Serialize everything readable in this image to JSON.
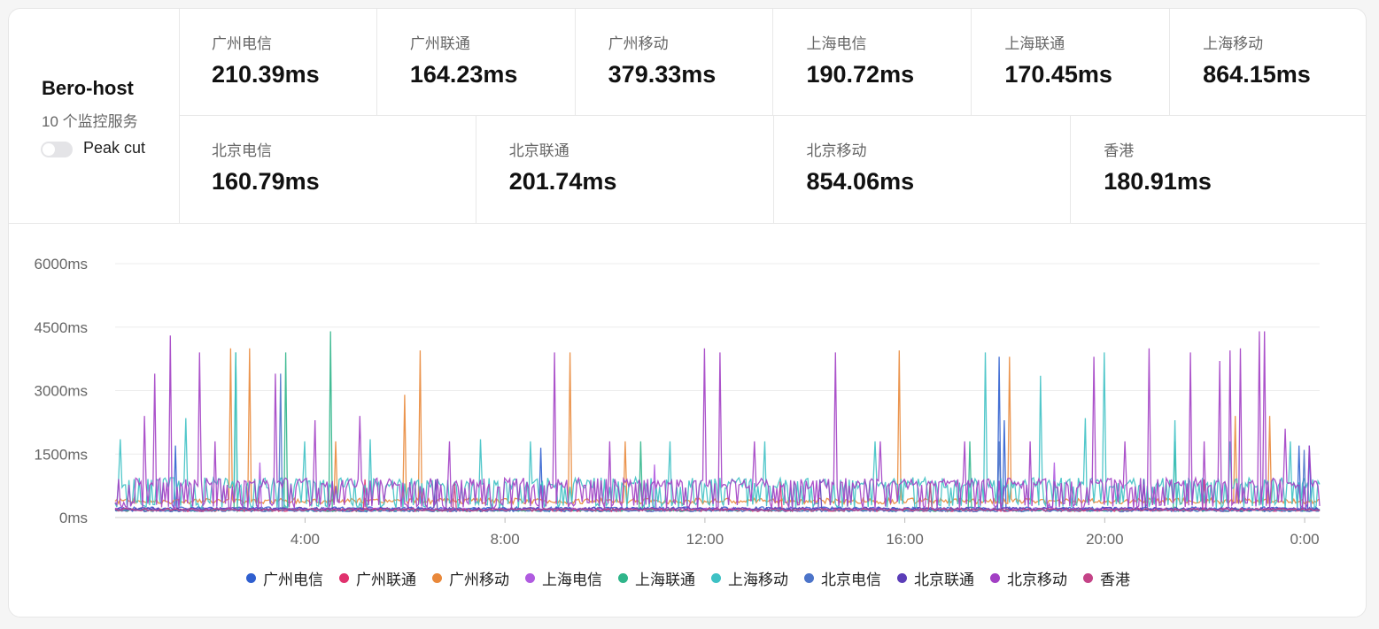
{
  "host": {
    "name": "Bero-host",
    "service_count": "10 个监控服务",
    "peak_cut_label": "Peak cut",
    "peak_cut_enabled": false
  },
  "stats": [
    {
      "label": "广州电信",
      "value": "210.39ms"
    },
    {
      "label": "广州联通",
      "value": "164.23ms"
    },
    {
      "label": "广州移动",
      "value": "379.33ms"
    },
    {
      "label": "上海电信",
      "value": "190.72ms"
    },
    {
      "label": "上海联通",
      "value": "170.45ms"
    },
    {
      "label": "上海移动",
      "value": "864.15ms"
    },
    {
      "label": "北京电信",
      "value": "160.79ms"
    },
    {
      "label": "北京联通",
      "value": "201.74ms"
    },
    {
      "label": "北京移动",
      "value": "854.06ms"
    },
    {
      "label": "香港",
      "value": "180.91ms"
    }
  ],
  "chart_data": {
    "type": "line",
    "ylim": [
      0,
      6000
    ],
    "y_ticks": [
      "0ms",
      "1500ms",
      "3000ms",
      "4500ms",
      "6000ms"
    ],
    "y_tick_values": [
      0,
      1500,
      3000,
      4500,
      6000
    ],
    "x_ticks": [
      "4:00",
      "8:00",
      "12:00",
      "16:00",
      "20:00",
      "0:00"
    ],
    "x_tick_hours": [
      4,
      8,
      12,
      16,
      20,
      24
    ],
    "xlim_hours": [
      0.2,
      24.3
    ],
    "legend_placement": "bottom",
    "series": [
      {
        "name": "广州电信",
        "color": "#2f5fcf",
        "baseline": 210,
        "spikes": [
          [
            1.4,
            1700
          ],
          [
            8.7,
            1650
          ],
          [
            17.9,
            3800
          ],
          [
            18.0,
            2300
          ],
          [
            23.9,
            1700
          ],
          [
            24.1,
            1700
          ]
        ]
      },
      {
        "name": "广州联通",
        "color": "#e0316d",
        "baseline": 165,
        "spikes": [
          [
            5.2,
            900
          ],
          [
            13.5,
            850
          ],
          [
            22.0,
            900
          ]
        ]
      },
      {
        "name": "广州移动",
        "color": "#e9883a",
        "baseline": 380,
        "spikes": [
          [
            2.5,
            4000
          ],
          [
            2.9,
            4000
          ],
          [
            4.6,
            1800
          ],
          [
            6.0,
            2900
          ],
          [
            6.3,
            3950
          ],
          [
            9.3,
            3900
          ],
          [
            10.4,
            1800
          ],
          [
            15.9,
            3950
          ],
          [
            18.1,
            3800
          ],
          [
            22.6,
            2400
          ],
          [
            23.3,
            2400
          ]
        ]
      },
      {
        "name": "上海电信",
        "color": "#b05be0",
        "baseline": 190,
        "spikes": [
          [
            3.1,
            1300
          ],
          [
            11.0,
            1250
          ],
          [
            19.0,
            1300
          ]
        ]
      },
      {
        "name": "上海联通",
        "color": "#2fb58a",
        "baseline": 170,
        "spikes": [
          [
            2.6,
            3900
          ],
          [
            3.6,
            3900
          ],
          [
            4.5,
            4400
          ],
          [
            10.7,
            1800
          ],
          [
            17.3,
            1800
          ],
          [
            21.4,
            1800
          ]
        ]
      },
      {
        "name": "上海移动",
        "color": "#3ec1c4",
        "baseline": 860,
        "spikes": [
          [
            0.3,
            1850
          ],
          [
            1.6,
            2350
          ],
          [
            2.6,
            3900
          ],
          [
            4.0,
            1800
          ],
          [
            5.3,
            1850
          ],
          [
            7.5,
            1850
          ],
          [
            8.5,
            1800
          ],
          [
            11.3,
            1800
          ],
          [
            13.2,
            1800
          ],
          [
            15.4,
            1800
          ],
          [
            17.6,
            3900
          ],
          [
            18.7,
            3350
          ],
          [
            19.6,
            2350
          ],
          [
            20.0,
            3900
          ],
          [
            21.4,
            2300
          ],
          [
            22.5,
            1800
          ],
          [
            23.7,
            1800
          ]
        ]
      },
      {
        "name": "北京电信",
        "color": "#4c74c9",
        "baseline": 160,
        "spikes": [
          [
            3.5,
            3400
          ],
          [
            17.9,
            1800
          ],
          [
            24.0,
            1600
          ]
        ]
      },
      {
        "name": "北京联通",
        "color": "#5b3db8",
        "baseline": 200,
        "spikes": [
          [
            6.6,
            900
          ],
          [
            14.3,
            900
          ],
          [
            20.8,
            900
          ]
        ]
      },
      {
        "name": "北京移动",
        "color": "#a23fc4",
        "baseline": 850,
        "spikes": [
          [
            0.8,
            2400
          ],
          [
            1.0,
            3400
          ],
          [
            1.3,
            4300
          ],
          [
            1.9,
            3900
          ],
          [
            2.2,
            1800
          ],
          [
            3.4,
            3400
          ],
          [
            4.2,
            2300
          ],
          [
            5.1,
            2400
          ],
          [
            6.9,
            1800
          ],
          [
            9.0,
            3900
          ],
          [
            10.1,
            1800
          ],
          [
            12.0,
            4000
          ],
          [
            12.3,
            3900
          ],
          [
            13.0,
            1800
          ],
          [
            14.6,
            3900
          ],
          [
            15.5,
            1800
          ],
          [
            17.2,
            1800
          ],
          [
            18.5,
            1800
          ],
          [
            19.8,
            3800
          ],
          [
            20.4,
            1800
          ],
          [
            20.9,
            4000
          ],
          [
            21.7,
            3900
          ],
          [
            22.0,
            1800
          ],
          [
            22.3,
            3700
          ],
          [
            22.5,
            3950
          ],
          [
            22.7,
            4000
          ],
          [
            23.1,
            4400
          ],
          [
            23.2,
            4400
          ],
          [
            23.6,
            2100
          ],
          [
            24.1,
            1700
          ]
        ]
      },
      {
        "name": "香港",
        "color": "#c44387",
        "baseline": 180,
        "spikes": [
          [
            7.0,
            800
          ],
          [
            16.5,
            800
          ]
        ]
      }
    ]
  }
}
